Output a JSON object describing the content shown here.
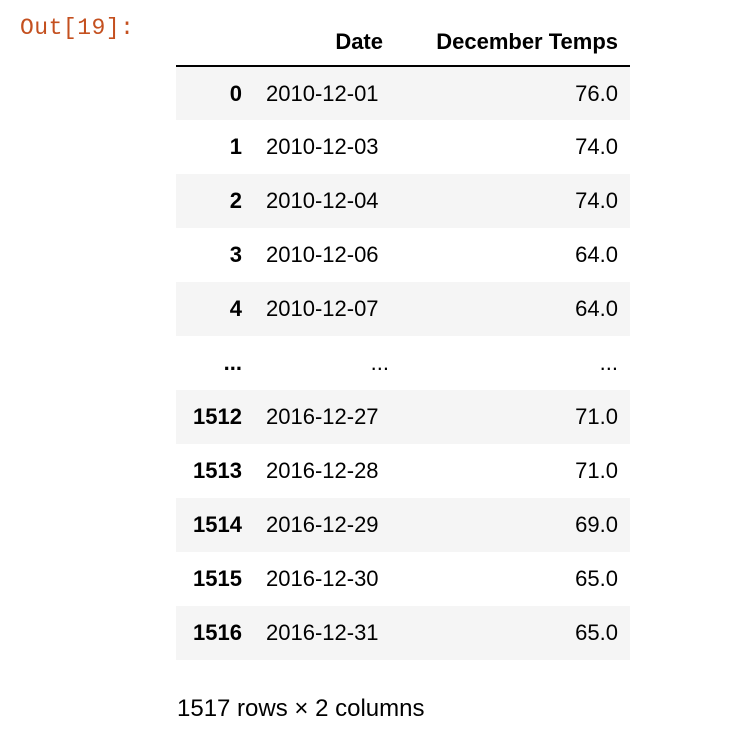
{
  "output_prompt": "Out[19]:",
  "dataframe": {
    "columns": [
      "Date",
      "December Temps"
    ],
    "rows": [
      {
        "index": "0",
        "date": "2010-12-01",
        "temp": "76.0"
      },
      {
        "index": "1",
        "date": "2010-12-03",
        "temp": "74.0"
      },
      {
        "index": "2",
        "date": "2010-12-04",
        "temp": "74.0"
      },
      {
        "index": "3",
        "date": "2010-12-06",
        "temp": "64.0"
      },
      {
        "index": "4",
        "date": "2010-12-07",
        "temp": "64.0"
      },
      {
        "index": "...",
        "date": "...",
        "temp": "..."
      },
      {
        "index": "1512",
        "date": "2016-12-27",
        "temp": "71.0"
      },
      {
        "index": "1513",
        "date": "2016-12-28",
        "temp": "71.0"
      },
      {
        "index": "1514",
        "date": "2016-12-29",
        "temp": "69.0"
      },
      {
        "index": "1515",
        "date": "2016-12-30",
        "temp": "65.0"
      },
      {
        "index": "1516",
        "date": "2016-12-31",
        "temp": "65.0"
      }
    ],
    "shape_text": "1517 rows × 2 columns"
  },
  "colors": {
    "prompt": "#c4501f",
    "row_stripe": "#f5f5f5"
  }
}
